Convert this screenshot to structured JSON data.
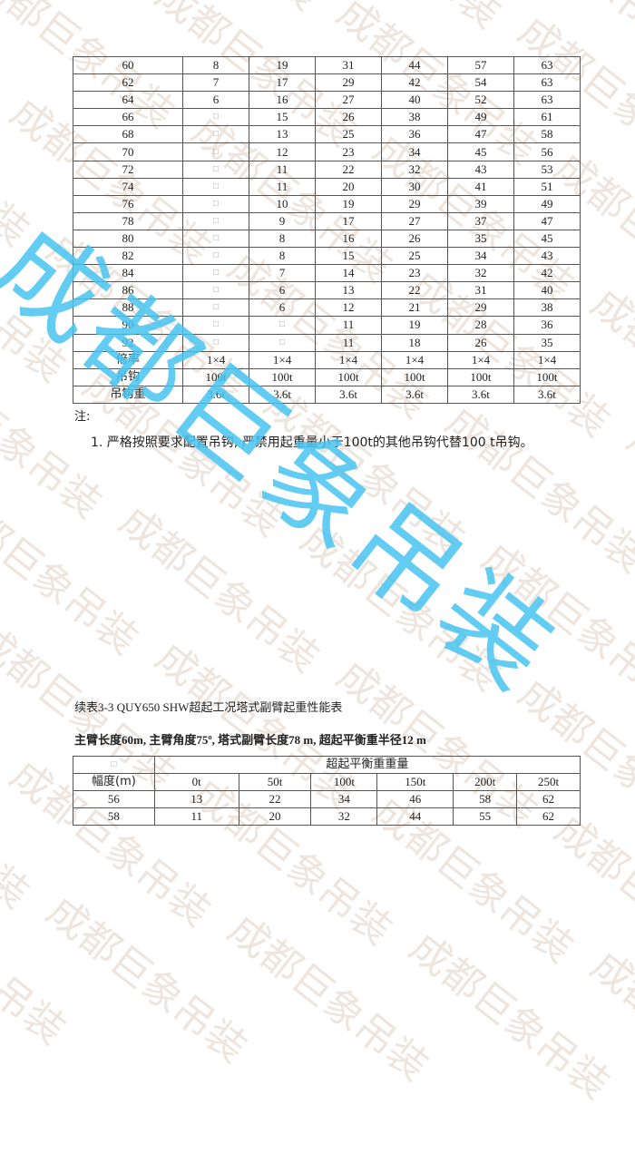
{
  "watermark": {
    "text": "成都巨象吊装",
    "color": "#46c3f0"
  },
  "table1": {
    "rows": [
      [
        "60",
        "8",
        "19",
        "31",
        "44",
        "57",
        "63"
      ],
      [
        "62",
        "7",
        "17",
        "29",
        "42",
        "54",
        "63"
      ],
      [
        "64",
        "6",
        "16",
        "27",
        "40",
        "52",
        "63"
      ],
      [
        "66",
        "□",
        "15",
        "26",
        "38",
        "49",
        "61"
      ],
      [
        "68",
        "□",
        "13",
        "25",
        "36",
        "47",
        "58"
      ],
      [
        "70",
        "□",
        "12",
        "23",
        "34",
        "45",
        "56"
      ],
      [
        "72",
        "□",
        "11",
        "22",
        "32",
        "43",
        "53"
      ],
      [
        "74",
        "□",
        "11",
        "20",
        "30",
        "41",
        "51"
      ],
      [
        "76",
        "□",
        "10",
        "19",
        "29",
        "39",
        "49"
      ],
      [
        "78",
        "□",
        "9",
        "17",
        "27",
        "37",
        "47"
      ],
      [
        "80",
        "□",
        "8",
        "16",
        "26",
        "35",
        "45"
      ],
      [
        "82",
        "□",
        "8",
        "15",
        "25",
        "34",
        "43"
      ],
      [
        "84",
        "□",
        "7",
        "14",
        "23",
        "32",
        "42"
      ],
      [
        "86",
        "□",
        "6",
        "13",
        "22",
        "31",
        "40"
      ],
      [
        "88",
        "□",
        "6",
        "12",
        "21",
        "29",
        "38"
      ],
      [
        "90",
        "□",
        "□",
        "11",
        "19",
        "28",
        "36"
      ],
      [
        "92",
        "□",
        "□",
        "11",
        "18",
        "26",
        "35"
      ]
    ],
    "footer_rows": [
      [
        "倍率",
        "1×4",
        "1×4",
        "1×4",
        "1×4",
        "1×4",
        "1×4"
      ],
      [
        "吊钩",
        "100t",
        "100t",
        "100t",
        "100t",
        "100t",
        "100t"
      ],
      [
        "吊钩重",
        "3.6t",
        "3.6t",
        "3.6t",
        "3.6t",
        "3.6t",
        "3.6t"
      ]
    ]
  },
  "notes": {
    "label": "注:",
    "item1": "1. 严格按照要求配置吊钩, 严禁用起重量小于100t的其他吊钩代替100 t吊钩。"
  },
  "table2": {
    "caption": "续表3-3 QUY650 SHW超起工况塔式副臂起重性能表",
    "subtitle": "主臂长度60m, 主臂角度75º, 塔式副臂长度78 m, 超起平衡重半径12 m",
    "corner": "□",
    "group_header": "超起平衡重重量",
    "radius_header": "幅度(m)",
    "columns": [
      "0t",
      "50t",
      "100t",
      "150t",
      "200t",
      "250t"
    ],
    "rows": [
      [
        "56",
        "13",
        "22",
        "34",
        "46",
        "58",
        "62"
      ],
      [
        "58",
        "11",
        "20",
        "32",
        "44",
        "55",
        "62"
      ]
    ]
  }
}
